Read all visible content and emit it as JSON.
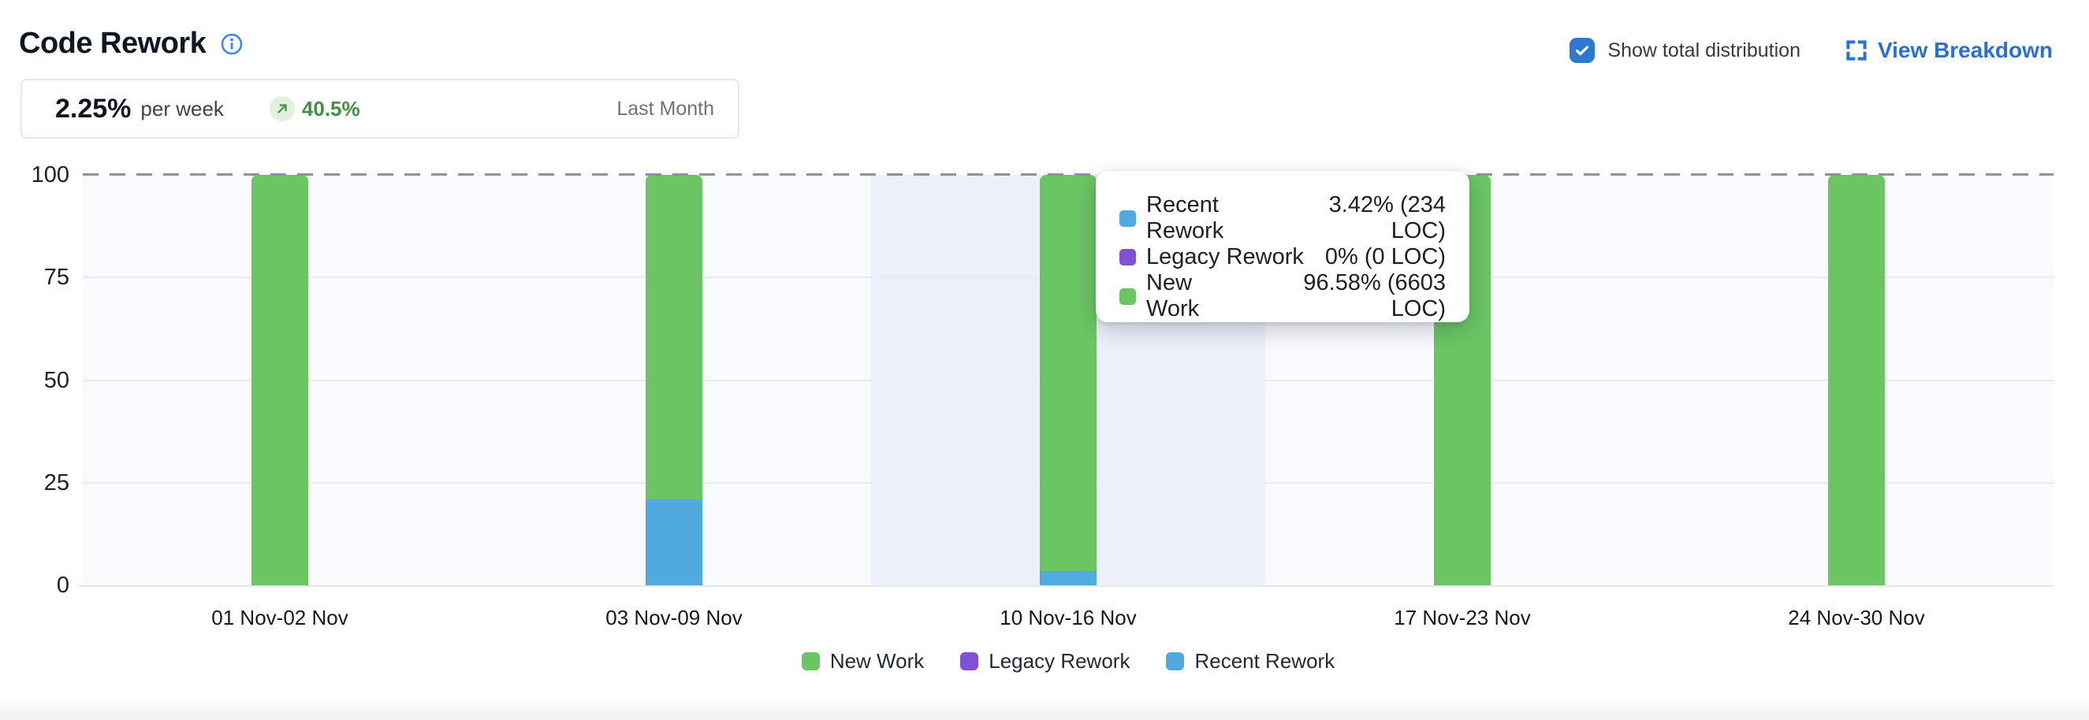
{
  "header": {
    "title": "Code Rework",
    "show_total_label": "Show total distribution",
    "show_total_checked": true,
    "view_breakdown_label": "View Breakdown"
  },
  "stats": {
    "value": "2.25%",
    "unit": "per week",
    "change": "40.5%",
    "change_direction": "up",
    "period": "Last Month"
  },
  "chart_data": {
    "type": "bar",
    "stacked": true,
    "title": "Code Rework weekly distribution",
    "categories": [
      "01 Nov-02 Nov",
      "03 Nov-09 Nov",
      "10 Nov-16 Nov",
      "17 Nov-23 Nov",
      "24 Nov-30 Nov"
    ],
    "series": [
      {
        "name": "New Work",
        "color": "#6cc563",
        "values": [
          100,
          79,
          96.58,
          100,
          100
        ]
      },
      {
        "name": "Legacy Rework",
        "color": "#7e52d1",
        "values": [
          0,
          0,
          0,
          0,
          0
        ]
      },
      {
        "name": "Recent Rework",
        "color": "#50aadf",
        "values": [
          0,
          21,
          3.42,
          0,
          0
        ]
      }
    ],
    "stack_order_bottom_to_top": [
      "Recent Rework",
      "Legacy Rework",
      "New Work"
    ],
    "ylim": [
      0,
      100
    ],
    "y_ticks": [
      0,
      25,
      50,
      75,
      100
    ],
    "y_tick_labels": [
      "0",
      "25",
      "50",
      "75",
      "100"
    ],
    "grid": true,
    "dashed_line_at": 100,
    "highlighted_category_index": 2,
    "legend_position": "bottom",
    "legend": [
      "New Work",
      "Legacy Rework",
      "Recent Rework"
    ]
  },
  "tooltip": {
    "rows": [
      {
        "label": "Recent Rework",
        "value": "3.42% (234 LOC)",
        "color": "#50aadf"
      },
      {
        "label": "Legacy Rework",
        "value": "0% (0 LOC)",
        "color": "#7e52d1"
      },
      {
        "label": "New Work",
        "value": "96.58% (6603 LOC)",
        "color": "#6cc563"
      }
    ]
  },
  "colors": {
    "accent_blue": "#2c6fd4",
    "checkbox_blue": "#2e78d2",
    "trend_green": "#3e9142",
    "trend_badge_bg": "#e1f1de",
    "plot_background": "#f8fafd",
    "highlight_band": "#edf0fb",
    "gridline": "#e9ebef",
    "dashed_line": "#8c939c"
  }
}
